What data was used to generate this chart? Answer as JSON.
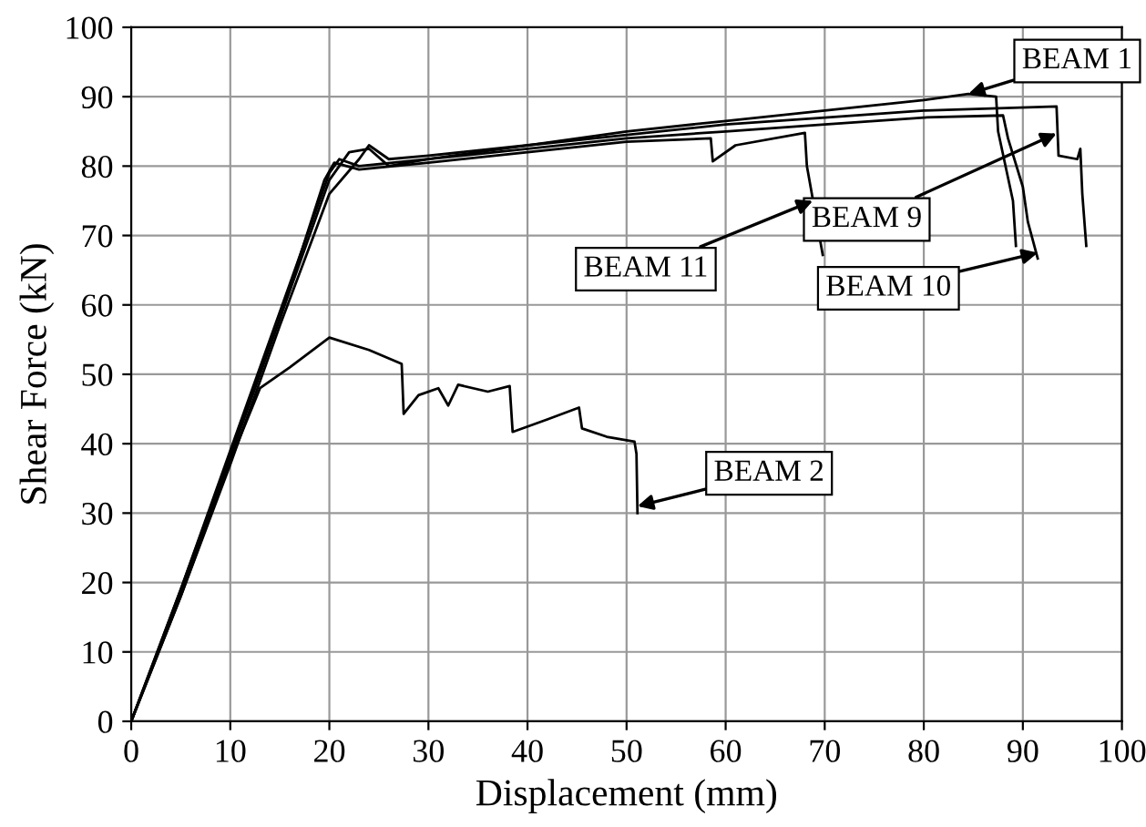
{
  "chart_data": {
    "type": "line",
    "xlabel": "Displacement (mm)",
    "ylabel": "Shear Force (kN)",
    "xlim": [
      0,
      100
    ],
    "xticks": [
      0,
      10,
      20,
      30,
      40,
      50,
      60,
      70,
      80,
      90,
      100
    ],
    "ylim": [
      0,
      100
    ],
    "yticks": [
      0,
      10,
      20,
      30,
      40,
      50,
      60,
      70,
      80,
      90,
      100
    ],
    "grid": true,
    "marker": "none",
    "line_style": "solid",
    "series": [
      {
        "color": "#000000",
        "x": [
          0,
          5,
          10,
          15,
          20,
          21,
          23,
          30,
          40,
          50,
          60,
          70,
          80,
          84.5,
          87.3,
          87.5,
          89,
          89.3
        ],
        "values": [
          0,
          19,
          39,
          59,
          79,
          81,
          80,
          81,
          83,
          85,
          86.5,
          88,
          89.5,
          90.4,
          90,
          85,
          75,
          68.5
        ]
      },
      {
        "color": "#000000",
        "x": [
          0,
          5,
          10,
          15,
          20,
          23,
          24,
          26,
          30,
          40,
          50,
          60,
          70,
          80,
          93.4,
          93.6,
          95.5,
          95.8,
          96,
          96.4
        ],
        "values": [
          0,
          18,
          37,
          57,
          76,
          81,
          83,
          81,
          81.5,
          83,
          84.5,
          86,
          87,
          88,
          88.6,
          81.5,
          81,
          82.5,
          76,
          68.5
        ]
      },
      {
        "color": "#000000",
        "x": [
          0,
          5,
          10,
          15,
          20,
          22,
          24,
          26,
          30,
          40,
          50,
          60,
          70,
          80,
          88,
          88.5,
          90,
          90.5,
          91.5
        ],
        "values": [
          0,
          18.5,
          38,
          58,
          78,
          82,
          82.5,
          80,
          81,
          82.5,
          84,
          85,
          86,
          87,
          87.3,
          84,
          77,
          72,
          66.7
        ]
      },
      {
        "color": "#000000",
        "x": [
          0,
          5,
          10,
          15,
          19.5,
          20.5,
          23,
          30,
          40,
          50,
          58.5,
          58.7,
          61,
          68,
          68.2,
          69.8
        ],
        "values": [
          0,
          19,
          38.5,
          58,
          78,
          80.5,
          79.5,
          80.5,
          82,
          83.5,
          84,
          80.7,
          83,
          84.8,
          80,
          67.2
        ]
      },
      {
        "color": "#000000",
        "x": [
          0,
          5,
          10,
          13,
          16,
          20,
          24,
          27.3,
          27.5,
          29,
          31,
          32,
          33,
          36,
          38.2,
          38.5,
          42,
          45.2,
          45.5,
          48,
          50.8,
          51,
          51.1
        ],
        "values": [
          0,
          18,
          37.5,
          48,
          51,
          55.3,
          53.5,
          51.5,
          44.3,
          47,
          48,
          45.5,
          48.5,
          47.5,
          48.3,
          41.7,
          43.5,
          45.2,
          42.2,
          41,
          40.3,
          38.5,
          30
        ]
      }
    ],
    "annotations": [
      {
        "text": "BEAM 1",
        "x": 84.5,
        "y": 90.4
      },
      {
        "text": "BEAM 9",
        "x": 93.4,
        "y": 84.7
      },
      {
        "text": "BEAM 11",
        "x": 68.8,
        "y": 75
      },
      {
        "text": "BEAM 10",
        "x": 91.5,
        "y": 67.5
      },
      {
        "text": "BEAM 2",
        "x": 51.1,
        "y": 31
      }
    ]
  }
}
